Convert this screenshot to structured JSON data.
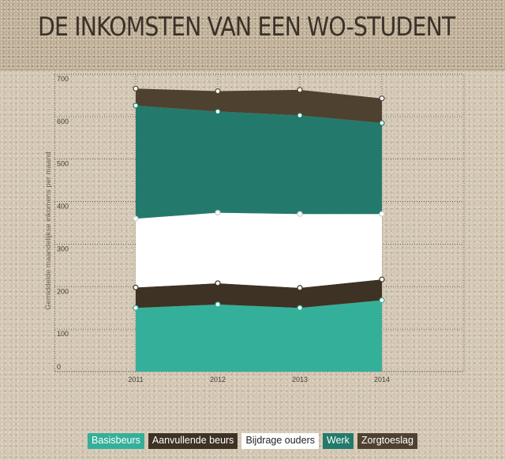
{
  "header": {
    "title": "DE INKOMSTEN VAN EEN WO-STUDENT"
  },
  "chart_data": {
    "type": "area",
    "stacked": true,
    "x": [
      "2011",
      "2012",
      "2013",
      "2014"
    ],
    "ylabel": "Gemiddelde maandelijkse inkomens per maand",
    "ylim": [
      0,
      700
    ],
    "yticks": [
      0,
      100,
      200,
      300,
      400,
      500,
      600,
      700
    ],
    "ytick_labels": [
      "0",
      "100",
      "200",
      "300",
      "400",
      "500",
      "600",
      "700"
    ],
    "grid": "dotted",
    "legend_position": "bottom",
    "series": [
      {
        "name": "Basisbeurs",
        "values": [
          150,
          158,
          150,
          168
        ],
        "color": "#34b09a",
        "text_color": "#ffffff"
      },
      {
        "name": "Aanvullende beurs",
        "values": [
          48,
          50,
          47,
          49
        ],
        "color": "#3e3225",
        "text_color": "#ffffff"
      },
      {
        "name": "Bijdrage ouders",
        "values": [
          162,
          166,
          174,
          154
        ],
        "color": "#ffffff",
        "text_color": "#222222"
      },
      {
        "name": "Werk",
        "values": [
          266,
          238,
          232,
          214
        ],
        "color": "#237a6c",
        "text_color": "#ffffff"
      },
      {
        "name": "Zorgtoeslag",
        "values": [
          40,
          48,
          60,
          58
        ],
        "color": "#4e4130",
        "text_color": "#ffffff"
      }
    ]
  }
}
